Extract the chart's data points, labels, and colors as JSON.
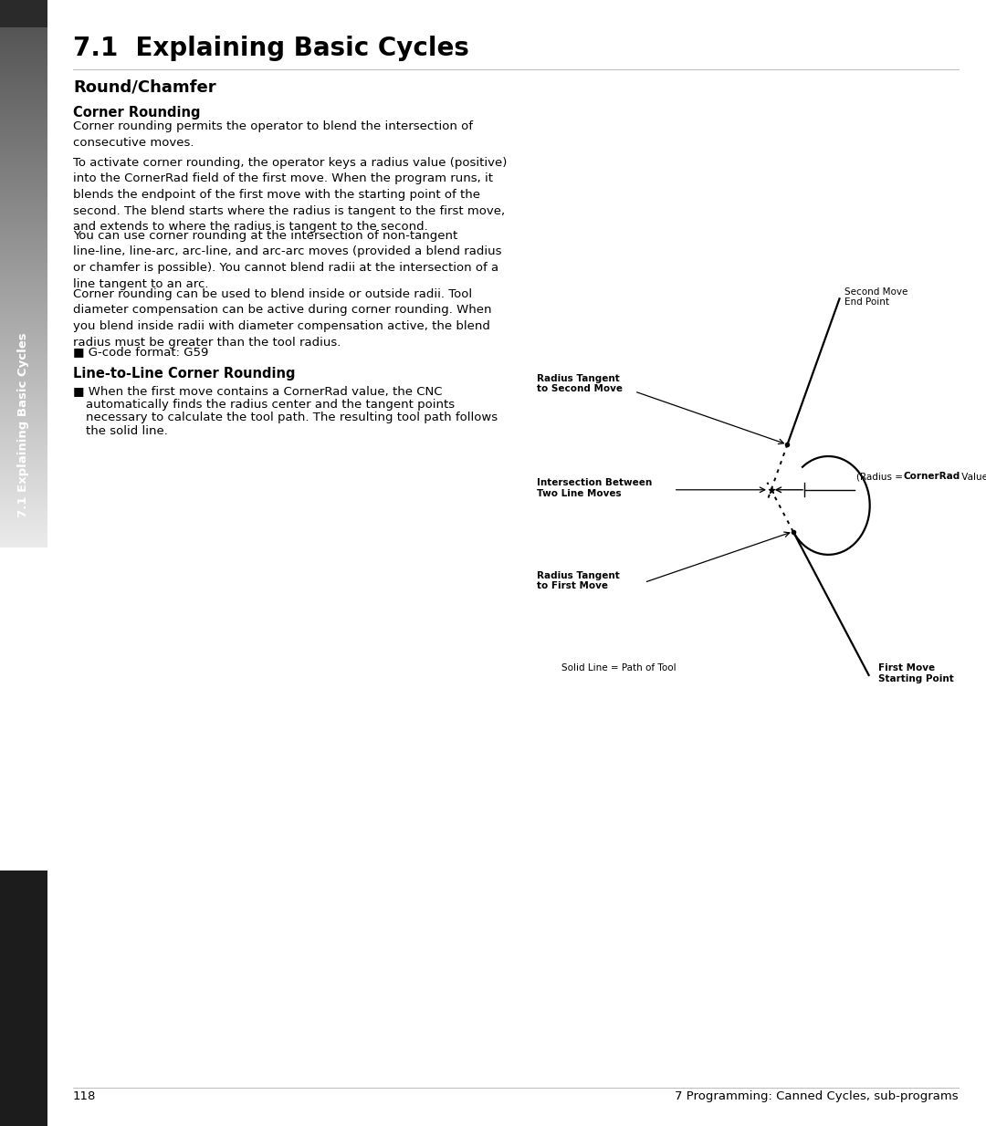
{
  "title": "7.1  Explaining Basic Cycles",
  "section_title": "Round/Chamfer",
  "subsection1": "Corner Rounding",
  "para1": "Corner rounding permits the operator to blend the intersection of\nconsecutive moves.",
  "para2": "To activate corner rounding, the operator keys a radius value (positive)\ninto the CornerRad field of the first move. When the program runs, it\nblends the endpoint of the first move with the starting point of the\nsecond. The blend starts where the radius is tangent to the first move,\nand extends to where the radius is tangent to the second.",
  "para3": "You can use corner rounding at the intersection of non-tangent\nline-line, line-arc, arc-line, and arc-arc moves (provided a blend radius\nor chamfer is possible). You cannot blend radii at the intersection of a\nline tangent to an arc.",
  "para4": "Corner rounding can be used to blend inside or outside radii. Tool\ndiameter compensation can be active during corner rounding. When\nyou blend inside radii with diameter compensation active, the blend\nradius must be greater than the tool radius.",
  "gcode": "■ G-code format: G59",
  "subsection2": "Line-to-Line Corner Rounding",
  "bullet1_prefix": "■ ",
  "bullet1_line1": "When the first move contains a CornerRad value, the CNC",
  "bullet1_line2": "automatically finds the radius center and the tangent points",
  "bullet1_line3": "necessary to calculate the tool path. The resulting tool path follows",
  "bullet1_line4": "the solid line.",
  "sidebar_text": "7.1 Explaining Basic Cycles",
  "page_num": "118",
  "footer_right": "7 Programming: Canned Cycles, sub-programs",
  "bg_color": "#ffffff",
  "text_color": "#000000"
}
